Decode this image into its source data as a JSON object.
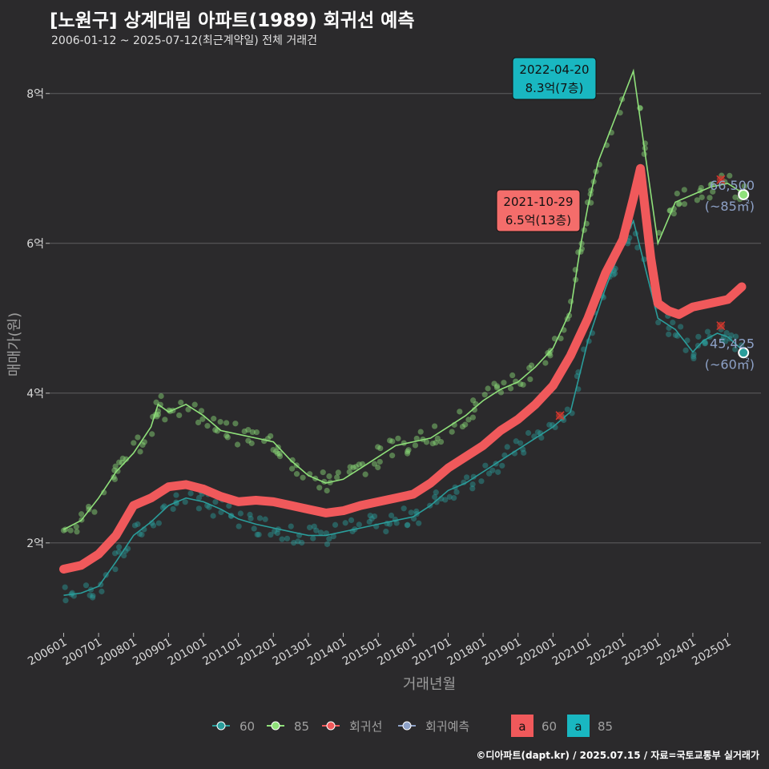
{
  "title": "[노원구] 상계대림 아파트(1989) 회귀선 예측",
  "subtitle": "2006-01-12 ~ 2025-07-12(최근계약일) 전체 거래건",
  "source": "©디아파트(dapt.kr) / 2025.07.15 / 자료=국토교통부 실거래가",
  "colors": {
    "background": "#2b2a2c",
    "grid": "#5e5e60",
    "series_60": "#2a9d9b",
    "series_85": "#8fe07a",
    "regression": "#f0595b",
    "regression_forecast": "#8ea2c8",
    "label_text": "#8ea2c8"
  },
  "chart_data": {
    "type": "line",
    "xlabel": "거래년월",
    "ylabel": "매매가(원)",
    "ylim": [
      0.8,
      8.5
    ],
    "xlim": [
      2005.6,
      2025.95
    ],
    "y_ticks": [
      {
        "v": 2,
        "label": "2억"
      },
      {
        "v": 4,
        "label": "4억"
      },
      {
        "v": 6,
        "label": "6억"
      },
      {
        "v": 8,
        "label": "8억"
      }
    ],
    "x_ticks": [
      "200601",
      "200701",
      "200801",
      "200901",
      "201001",
      "201101",
      "201201",
      "201301",
      "201401",
      "201501",
      "201601",
      "201701",
      "201801",
      "201901",
      "202001",
      "202101",
      "202201",
      "202301",
      "202401",
      "202501"
    ],
    "series": [
      {
        "name": "60",
        "key": "s60",
        "x": [
          2006.0,
          2006.5,
          2007.0,
          2007.5,
          2008.0,
          2008.5,
          2009.0,
          2009.5,
          2010.0,
          2010.5,
          2011.0,
          2011.5,
          2012.0,
          2012.5,
          2013.0,
          2013.5,
          2014.0,
          2014.5,
          2015.0,
          2015.5,
          2016.0,
          2016.5,
          2017.0,
          2017.5,
          2018.0,
          2018.5,
          2019.0,
          2019.5,
          2020.0,
          2020.5,
          2021.0,
          2021.5,
          2022.0,
          2022.3,
          2023.0,
          2023.5,
          2024.0,
          2024.3,
          2024.7,
          2025.0,
          2025.5
        ],
        "values": [
          1.3,
          1.33,
          1.42,
          1.75,
          2.1,
          2.28,
          2.5,
          2.6,
          2.55,
          2.45,
          2.32,
          2.25,
          2.2,
          2.15,
          2.1,
          2.1,
          2.15,
          2.2,
          2.25,
          2.3,
          2.35,
          2.5,
          2.7,
          2.8,
          2.95,
          3.1,
          3.25,
          3.4,
          3.55,
          3.75,
          4.7,
          5.4,
          6.0,
          6.3,
          5.0,
          4.85,
          4.55,
          4.7,
          4.8,
          4.75,
          4.54
        ]
      },
      {
        "name": "85",
        "key": "s85",
        "x": [
          2006.0,
          2006.5,
          2007.0,
          2007.5,
          2008.0,
          2008.5,
          2008.7,
          2009.0,
          2009.5,
          2010.0,
          2010.5,
          2011.0,
          2011.5,
          2012.0,
          2012.5,
          2013.0,
          2013.5,
          2014.0,
          2014.5,
          2015.0,
          2015.5,
          2016.0,
          2016.5,
          2017.0,
          2017.5,
          2018.0,
          2018.5,
          2019.0,
          2019.5,
          2020.0,
          2020.5,
          2020.8,
          2021.0,
          2021.3,
          2022.3,
          2023.0,
          2023.5,
          2024.0,
          2024.5,
          2025.0,
          2025.5
        ],
        "values": [
          2.18,
          2.3,
          2.6,
          2.95,
          3.2,
          3.55,
          3.85,
          3.75,
          3.85,
          3.7,
          3.5,
          3.45,
          3.4,
          3.35,
          3.1,
          2.9,
          2.8,
          2.85,
          3.0,
          3.15,
          3.3,
          3.35,
          3.4,
          3.55,
          3.7,
          3.9,
          4.05,
          4.15,
          4.35,
          4.6,
          5.1,
          6.0,
          6.5,
          7.1,
          8.3,
          6.0,
          6.55,
          6.65,
          6.75,
          6.8,
          6.65
        ]
      },
      {
        "name": "회귀선",
        "key": "reg",
        "x": [
          2006.0,
          2006.5,
          2007.0,
          2007.5,
          2008.0,
          2008.5,
          2009.0,
          2009.5,
          2010.0,
          2010.5,
          2011.0,
          2011.5,
          2012.0,
          2012.5,
          2013.0,
          2013.5,
          2014.0,
          2014.5,
          2015.0,
          2015.5,
          2016.0,
          2016.5,
          2017.0,
          2017.5,
          2018.0,
          2018.5,
          2019.0,
          2019.5,
          2020.0,
          2020.5,
          2021.0,
          2021.5,
          2022.0,
          2022.3,
          2022.5,
          2022.8,
          2023.0,
          2023.3,
          2023.6,
          2024.0,
          2024.5,
          2025.0,
          2025.4
        ],
        "values": [
          1.65,
          1.7,
          1.85,
          2.1,
          2.5,
          2.6,
          2.75,
          2.78,
          2.72,
          2.62,
          2.55,
          2.57,
          2.55,
          2.5,
          2.45,
          2.4,
          2.43,
          2.5,
          2.55,
          2.6,
          2.65,
          2.8,
          3.0,
          3.15,
          3.3,
          3.5,
          3.65,
          3.85,
          4.1,
          4.5,
          5.0,
          5.6,
          6.05,
          6.6,
          7.0,
          5.8,
          5.2,
          5.1,
          5.05,
          5.15,
          5.2,
          5.25,
          5.42
        ]
      }
    ],
    "annotations": [
      {
        "x": 2022.3,
        "y": 8.3,
        "date": "2022-04-20",
        "value": "8.3억(7층)",
        "bg": "#19b7c1"
      },
      {
        "x": 2021.8,
        "y": 6.5,
        "date": "2021-10-29",
        "value": "6.5억(13층)",
        "bg": "#f46d6b"
      }
    ],
    "end_labels": [
      {
        "y": 6.65,
        "value": "66,500",
        "area": "(~85㎡)",
        "series": "s85"
      },
      {
        "y": 4.54,
        "value": "45,425",
        "area": "(~60㎡)",
        "series": "s60"
      }
    ],
    "outliers": [
      {
        "x": 2020.2,
        "y": 3.7
      },
      {
        "x": 2024.8,
        "y": 6.85
      },
      {
        "x": 2024.8,
        "y": 4.9
      }
    ],
    "legend": {
      "items": [
        {
          "label": "60",
          "key": "s60"
        },
        {
          "label": "85",
          "key": "s85"
        },
        {
          "label": "회귀선",
          "key": "reg"
        },
        {
          "label": "회귀예측",
          "key": "pred"
        }
      ],
      "fill_items": [
        {
          "glyph": "a",
          "label": "60",
          "key": "reg"
        },
        {
          "glyph": "a",
          "label": "85",
          "key": "ann85"
        }
      ]
    }
  }
}
